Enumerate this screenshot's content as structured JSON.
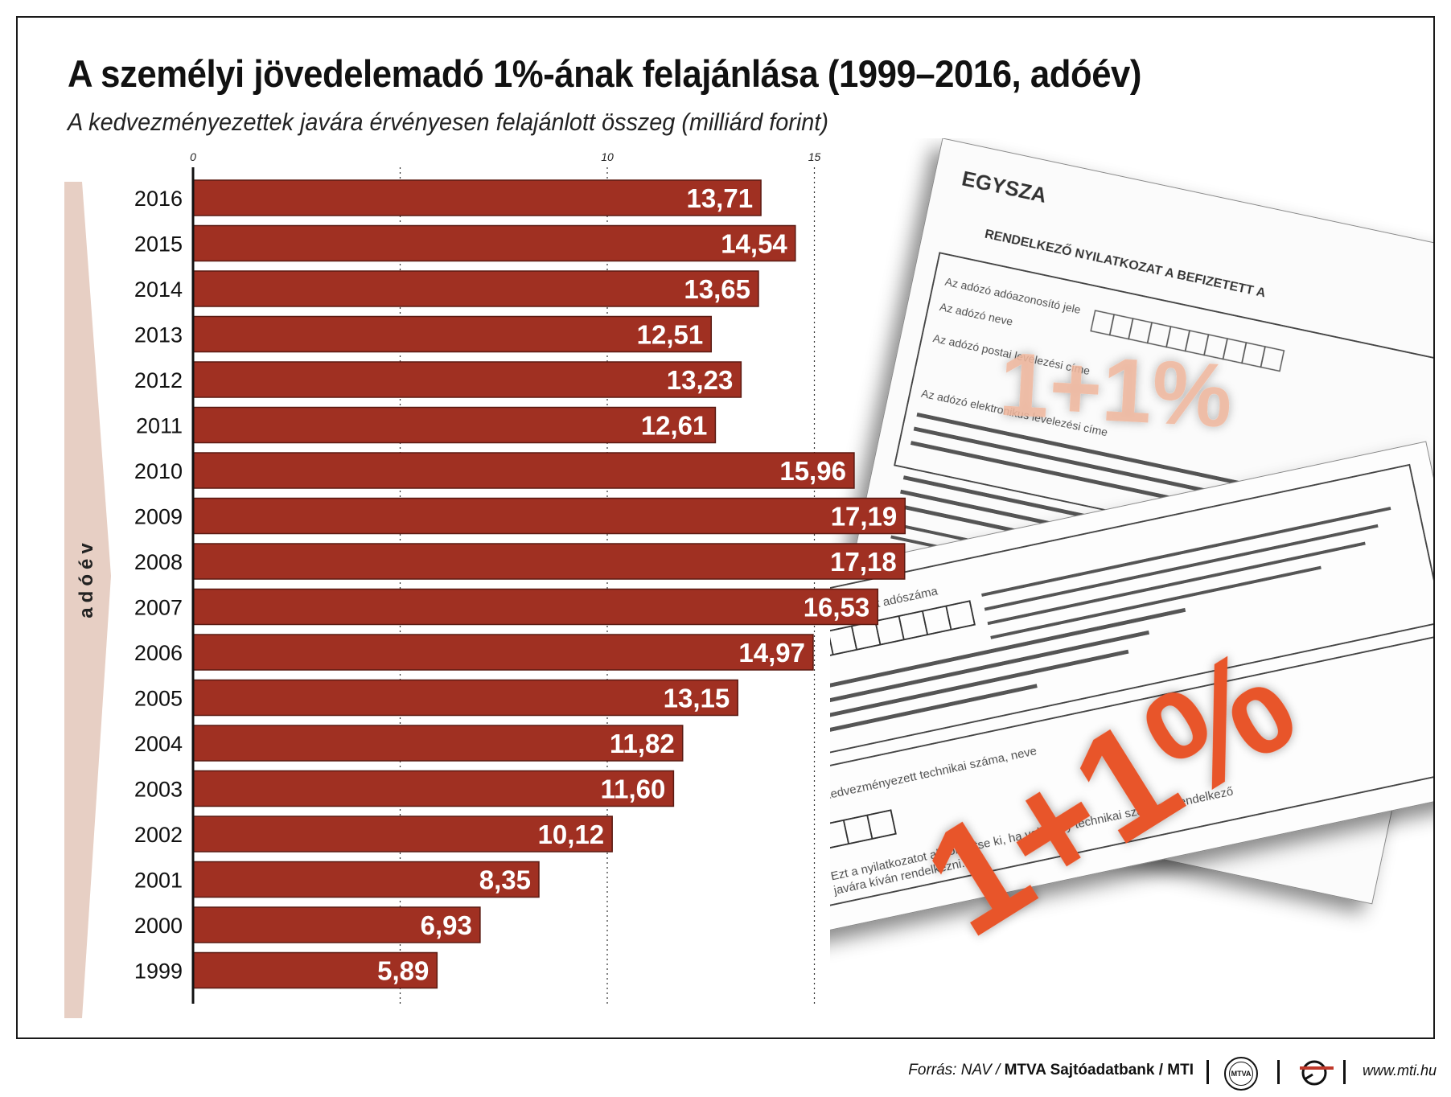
{
  "title": "A személyi jövedelemadó 1%-ának felajánlása (1999–2016, adóév)",
  "subtitle": "A kedvezményezettek javára érvényesen felajánlott összeg (milliárd forint)",
  "axis_band_label": "adóév",
  "colors": {
    "bar": "#a03022",
    "bar_border": "#5a1a12",
    "band": "#e7cfc4",
    "accent_orange": "#e8542a"
  },
  "chart_data": {
    "type": "bar",
    "orientation": "horizontal",
    "categories": [
      "2016",
      "2015",
      "2014",
      "2013",
      "2012",
      "2011",
      "2010",
      "2009",
      "2008",
      "2007",
      "2006",
      "2005",
      "2004",
      "2003",
      "2002",
      "2001",
      "2000",
      "1999"
    ],
    "values": [
      13.71,
      14.54,
      13.65,
      12.51,
      13.23,
      12.61,
      15.96,
      17.19,
      17.18,
      16.53,
      14.97,
      13.15,
      11.82,
      11.6,
      10.12,
      8.35,
      6.93,
      5.89
    ],
    "value_labels": [
      "13,71",
      "14,54",
      "13,65",
      "12,51",
      "13,23",
      "12,61",
      "15,96",
      "17,19",
      "17,18",
      "16,53",
      "14,97",
      "13,15",
      "11,82",
      "11,60",
      "10,12",
      "8,35",
      "6,93",
      "5,89"
    ],
    "x_ticks": [
      0,
      5,
      10,
      15
    ],
    "x_tick_labels": [
      "0",
      "",
      "10",
      "15"
    ],
    "xlim": [
      0,
      15
    ],
    "grid": true,
    "grid_style": "dotted"
  },
  "decor": {
    "form_back_title": "EGYSZA",
    "form_back_heading": "RENDELKEZŐ NYILATKOZAT A BEFIZETETT A",
    "form_back_lines": [
      "Az adózó adóazonosító jele",
      "Az adózó neve",
      "Az adózó postai levelezési címe",
      "Az adózó elektronikus levelezési címe"
    ],
    "form_front_lines": [
      "A kedvezményezett adószáma",
      "A kedvezményezett technikai száma, neve",
      "Ezt a nyilatkozatot akkor töltse ki, ha valamely technikai számmal rendelkező",
      "javára kíván rendelkezni."
    ],
    "stamp_back": "1+1%",
    "stamp_front": "1+1%"
  },
  "footer": {
    "source_prefix": "Forrás: NAV / ",
    "source_bold": "MTVA Sajtóadatbank",
    "source_suffix": " / MTI",
    "logo1_text": "MTVA",
    "url": "www.mti.hu"
  }
}
